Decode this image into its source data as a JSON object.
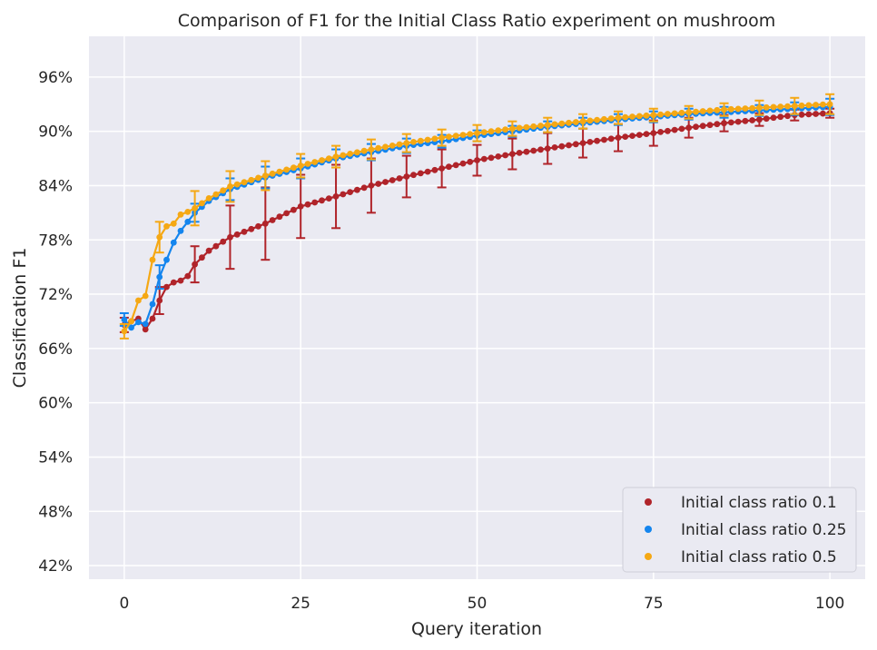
{
  "chart_data": {
    "type": "line",
    "title": "Comparison of F1 for the Initial Class Ratio experiment on mushroom",
    "xlabel": "Query iteration",
    "ylabel": "Classification F1",
    "xlim": [
      -5,
      105
    ],
    "ylim": [
      40.5,
      100.5
    ],
    "x_ticks": [
      0,
      25,
      50,
      75,
      100
    ],
    "x_tick_labels": [
      "0",
      "25",
      "50",
      "75",
      "100"
    ],
    "y_ticks": [
      42,
      48,
      54,
      60,
      66,
      72,
      78,
      84,
      90,
      96
    ],
    "y_tick_labels": [
      "42%",
      "48%",
      "54%",
      "60%",
      "66%",
      "72%",
      "78%",
      "84%",
      "90%",
      "96%"
    ],
    "grid": true,
    "legend_position": "lower-right",
    "error_bar_every": 5,
    "series": [
      {
        "name": "Initial class ratio 0.1",
        "color": "#b0242a",
        "anchors": [
          [
            0,
            68.6
          ],
          [
            1,
            69.0
          ],
          [
            2,
            69.3
          ],
          [
            3,
            68.1
          ],
          [
            4,
            69.3
          ],
          [
            5,
            71.3
          ],
          [
            6,
            72.8
          ],
          [
            7,
            73.3
          ],
          [
            8,
            73.5
          ],
          [
            9,
            74.0
          ],
          [
            10,
            75.3
          ],
          [
            12,
            76.8
          ],
          [
            15,
            78.3
          ],
          [
            20,
            79.8
          ],
          [
            25,
            81.7
          ],
          [
            30,
            82.8
          ],
          [
            35,
            84.0
          ],
          [
            40,
            85.0
          ],
          [
            45,
            85.9
          ],
          [
            50,
            86.8
          ],
          [
            55,
            87.5
          ],
          [
            60,
            88.1
          ],
          [
            65,
            88.7
          ],
          [
            70,
            89.3
          ],
          [
            75,
            89.8
          ],
          [
            80,
            90.4
          ],
          [
            85,
            90.9
          ],
          [
            90,
            91.3
          ],
          [
            95,
            91.8
          ],
          [
            100,
            92.0
          ]
        ],
        "error_x": [
          0,
          5,
          10,
          15,
          20,
          25,
          30,
          35,
          40,
          45,
          50,
          55,
          60,
          65,
          70,
          75,
          80,
          85,
          90,
          95,
          100
        ],
        "error_half": [
          0.8,
          1.5,
          2.0,
          3.5,
          4.0,
          3.5,
          3.5,
          3.0,
          2.3,
          2.1,
          1.7,
          1.7,
          1.7,
          1.6,
          1.5,
          1.4,
          1.1,
          0.9,
          0.7,
          0.6,
          0.5
        ]
      },
      {
        "name": "Initial class ratio 0.25",
        "color": "#1485ee",
        "anchors": [
          [
            0,
            69.2
          ],
          [
            1,
            68.3
          ],
          [
            2,
            68.9
          ],
          [
            3,
            68.7
          ],
          [
            4,
            70.9
          ],
          [
            5,
            73.9
          ],
          [
            6,
            75.8
          ],
          [
            7,
            77.7
          ],
          [
            8,
            79.0
          ],
          [
            9,
            80.0
          ],
          [
            10,
            81.0
          ],
          [
            12,
            82.3
          ],
          [
            15,
            83.6
          ],
          [
            20,
            84.9
          ],
          [
            25,
            85.9
          ],
          [
            30,
            87.0
          ],
          [
            35,
            87.7
          ],
          [
            40,
            88.4
          ],
          [
            45,
            88.9
          ],
          [
            50,
            89.5
          ],
          [
            55,
            90.0
          ],
          [
            60,
            90.5
          ],
          [
            65,
            90.9
          ],
          [
            70,
            91.3
          ],
          [
            75,
            91.6
          ],
          [
            80,
            91.9
          ],
          [
            85,
            92.1
          ],
          [
            90,
            92.3
          ],
          [
            95,
            92.5
          ],
          [
            100,
            92.7
          ]
        ],
        "error_x": [
          0,
          5,
          10,
          15,
          20,
          25,
          30,
          35,
          40,
          45,
          50,
          55,
          60,
          65,
          70,
          75,
          80,
          85,
          90,
          95,
          100
        ],
        "error_half": [
          0.7,
          1.3,
          1.0,
          1.2,
          1.2,
          1.1,
          1.0,
          0.9,
          0.8,
          0.7,
          0.6,
          0.6,
          0.6,
          0.6,
          0.6,
          0.6,
          0.6,
          0.6,
          0.6,
          0.7,
          0.9
        ]
      },
      {
        "name": "Initial class ratio 0.5",
        "color": "#f5a814",
        "anchors": [
          [
            0,
            67.9
          ],
          [
            1,
            69.0
          ],
          [
            2,
            71.3
          ],
          [
            3,
            71.8
          ],
          [
            4,
            75.8
          ],
          [
            5,
            78.3
          ],
          [
            6,
            79.5
          ],
          [
            7,
            79.8
          ],
          [
            8,
            80.8
          ],
          [
            9,
            81.1
          ],
          [
            10,
            81.5
          ],
          [
            12,
            82.6
          ],
          [
            15,
            83.9
          ],
          [
            20,
            85.1
          ],
          [
            25,
            86.2
          ],
          [
            30,
            87.2
          ],
          [
            35,
            88.0
          ],
          [
            40,
            88.7
          ],
          [
            45,
            89.3
          ],
          [
            50,
            89.8
          ],
          [
            55,
            90.3
          ],
          [
            60,
            90.7
          ],
          [
            65,
            91.1
          ],
          [
            70,
            91.5
          ],
          [
            75,
            91.8
          ],
          [
            80,
            92.1
          ],
          [
            85,
            92.4
          ],
          [
            90,
            92.6
          ],
          [
            95,
            92.8
          ],
          [
            100,
            93.0
          ]
        ],
        "error_x": [
          0,
          5,
          10,
          15,
          20,
          25,
          30,
          35,
          40,
          45,
          50,
          55,
          60,
          65,
          70,
          75,
          80,
          85,
          90,
          95,
          100
        ],
        "error_half": [
          0.8,
          1.7,
          1.9,
          1.7,
          1.6,
          1.3,
          1.2,
          1.1,
          1.0,
          0.9,
          0.9,
          0.8,
          0.8,
          0.8,
          0.7,
          0.7,
          0.7,
          0.7,
          0.8,
          0.9,
          1.1
        ]
      }
    ]
  }
}
